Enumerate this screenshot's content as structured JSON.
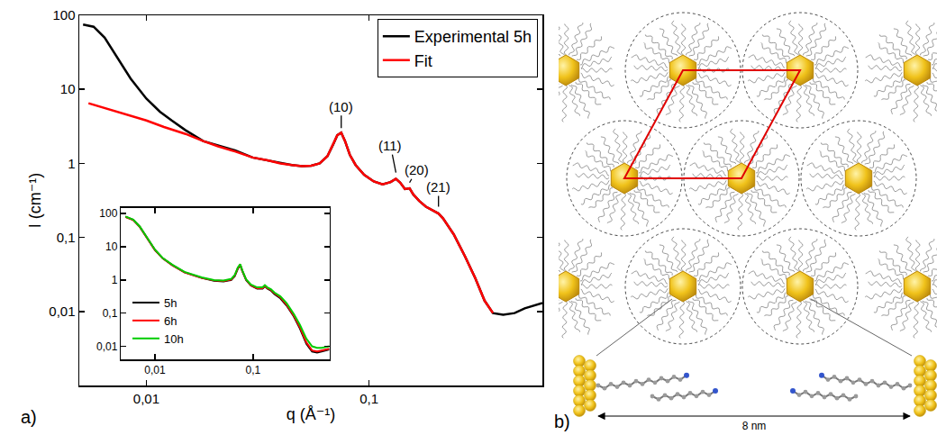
{
  "chart_data": [
    {
      "type": "line",
      "label": "a)",
      "x_label": "q (Å⁻¹)",
      "y_label": "I (cm⁻¹)",
      "log": true,
      "grid": false,
      "legend": "upper right",
      "xlim": [
        0.005,
        0.6
      ],
      "xticks": [
        {
          "value": 0.01,
          "label": "0,01"
        },
        {
          "value": 0.1,
          "label": "0,1"
        }
      ],
      "ylim": [
        0.001,
        100
      ],
      "yticks": [
        100,
        10,
        1,
        {
          "value": 0.1,
          "label": "0,1"
        },
        {
          "value": 0.01,
          "label": "0,01"
        }
      ],
      "series": [
        {
          "name": "Experimental 5h",
          "color": "#000000",
          "x": [
            0.0052,
            0.0058,
            0.0065,
            0.0075,
            0.0085,
            0.01,
            0.0115,
            0.013,
            0.015,
            0.018,
            0.021,
            0.025,
            0.03,
            0.035,
            0.04,
            0.045,
            0.05,
            0.055,
            0.06,
            0.065,
            0.069,
            0.072,
            0.075,
            0.078,
            0.082,
            0.087,
            0.095,
            0.105,
            0.115,
            0.125,
            0.132,
            0.138,
            0.145,
            0.152,
            0.158,
            0.168,
            0.18,
            0.195,
            0.205,
            0.215,
            0.24,
            0.27,
            0.3,
            0.33,
            0.36,
            0.4,
            0.45,
            0.5,
            0.55,
            0.6
          ],
          "values": [
            75,
            70,
            50,
            25,
            14,
            7.5,
            5,
            3.8,
            2.8,
            2.0,
            1.75,
            1.5,
            1.2,
            1.1,
            1.0,
            0.95,
            0.92,
            0.93,
            1.0,
            1.25,
            1.8,
            2.4,
            2.6,
            2.0,
            1.3,
            0.95,
            0.7,
            0.57,
            0.52,
            0.56,
            0.62,
            0.55,
            0.45,
            0.46,
            0.38,
            0.31,
            0.26,
            0.23,
            0.21,
            0.18,
            0.11,
            0.055,
            0.028,
            0.014,
            0.0095,
            0.009,
            0.0095,
            0.011,
            0.012,
            0.013
          ]
        },
        {
          "name": "Fit",
          "color": "#ff0000",
          "x": [
            0.0055,
            0.006,
            0.007,
            0.008,
            0.01,
            0.012,
            0.015,
            0.018,
            0.021,
            0.025,
            0.03,
            0.035,
            0.04,
            0.045,
            0.05,
            0.055,
            0.06,
            0.065,
            0.069,
            0.072,
            0.075,
            0.078,
            0.082,
            0.087,
            0.095,
            0.105,
            0.115,
            0.125,
            0.132,
            0.138,
            0.145,
            0.152,
            0.158,
            0.168,
            0.18,
            0.195,
            0.205,
            0.215,
            0.24,
            0.27,
            0.3,
            0.33,
            0.36
          ],
          "values": [
            6.5,
            6.0,
            5.2,
            4.6,
            3.8,
            3.1,
            2.5,
            2.0,
            1.7,
            1.45,
            1.2,
            1.1,
            1.0,
            0.95,
            0.92,
            0.93,
            1.0,
            1.25,
            1.8,
            2.4,
            2.6,
            2.0,
            1.3,
            0.95,
            0.7,
            0.57,
            0.52,
            0.56,
            0.62,
            0.55,
            0.45,
            0.46,
            0.38,
            0.31,
            0.26,
            0.23,
            0.21,
            0.18,
            0.11,
            0.055,
            0.028,
            0.014,
            0.0095
          ]
        }
      ],
      "annotations": [
        {
          "text": "(10)",
          "x": 0.075,
          "y": 3.0
        },
        {
          "text": "(11)",
          "x": 0.132,
          "y": 0.75
        },
        {
          "text": "(20)",
          "x": 0.152,
          "y": 0.55
        },
        {
          "text": "(21)",
          "x": 0.205,
          "y": 0.26
        }
      ]
    },
    {
      "type": "line",
      "log": true,
      "grid": false,
      "legend": "lower left",
      "xlim": [
        0.0045,
        0.6
      ],
      "xticks": [
        {
          "value": 0.01,
          "label": "0,01"
        },
        {
          "value": 0.1,
          "label": "0,1"
        }
      ],
      "ylim": [
        0.004,
        150
      ],
      "yticks": [
        100,
        10,
        1,
        {
          "value": 0.1,
          "label": "0,1"
        },
        {
          "value": 0.01,
          "label": "0,01"
        }
      ],
      "series": [
        {
          "name": "5h",
          "color": "#000000",
          "x": [
            0.005,
            0.006,
            0.007,
            0.008,
            0.01,
            0.012,
            0.015,
            0.02,
            0.03,
            0.04,
            0.05,
            0.06,
            0.065,
            0.07,
            0.074,
            0.078,
            0.085,
            0.095,
            0.11,
            0.125,
            0.132,
            0.14,
            0.152,
            0.165,
            0.19,
            0.22,
            0.26,
            0.3,
            0.35,
            0.4,
            0.45,
            0.5,
            0.6
          ],
          "values": [
            80,
            65,
            40,
            22,
            8,
            4.5,
            2.8,
            1.7,
            1.15,
            0.95,
            0.9,
            1.0,
            1.3,
            2.2,
            2.8,
            1.8,
            1.0,
            0.68,
            0.55,
            0.55,
            0.65,
            0.55,
            0.48,
            0.38,
            0.28,
            0.17,
            0.08,
            0.035,
            0.012,
            0.007,
            0.0065,
            0.007,
            0.008
          ]
        },
        {
          "name": "6h",
          "color": "#ff0000",
          "x": [
            0.005,
            0.006,
            0.007,
            0.008,
            0.01,
            0.012,
            0.015,
            0.02,
            0.03,
            0.04,
            0.05,
            0.06,
            0.065,
            0.07,
            0.074,
            0.078,
            0.085,
            0.095,
            0.11,
            0.125,
            0.132,
            0.14,
            0.152,
            0.165,
            0.19,
            0.22,
            0.26,
            0.3,
            0.35,
            0.4,
            0.45,
            0.5,
            0.6
          ],
          "values": [
            80,
            64,
            40,
            22,
            8,
            4.5,
            2.8,
            1.7,
            1.15,
            0.97,
            0.93,
            1.03,
            1.35,
            2.3,
            2.9,
            1.85,
            1.02,
            0.7,
            0.57,
            0.57,
            0.67,
            0.57,
            0.5,
            0.4,
            0.3,
            0.18,
            0.085,
            0.038,
            0.013,
            0.0075,
            0.007,
            0.0075,
            0.0085
          ]
        },
        {
          "name": "10h",
          "color": "#00cc00",
          "x": [
            0.005,
            0.006,
            0.007,
            0.008,
            0.01,
            0.012,
            0.015,
            0.02,
            0.03,
            0.04,
            0.05,
            0.06,
            0.065,
            0.07,
            0.074,
            0.078,
            0.085,
            0.095,
            0.11,
            0.125,
            0.132,
            0.14,
            0.152,
            0.165,
            0.19,
            0.22,
            0.26,
            0.3,
            0.35,
            0.4,
            0.45,
            0.5,
            0.6
          ],
          "values": [
            82,
            66,
            41,
            23,
            8.2,
            4.6,
            2.9,
            1.75,
            1.2,
            1.0,
            0.97,
            1.08,
            1.4,
            2.4,
            3.0,
            1.9,
            1.05,
            0.73,
            0.6,
            0.6,
            0.7,
            0.6,
            0.53,
            0.42,
            0.32,
            0.2,
            0.095,
            0.045,
            0.017,
            0.01,
            0.009,
            0.009,
            0.01
          ]
        }
      ]
    }
  ],
  "diagram": {
    "label": "b)",
    "distance_label": "8 nm"
  }
}
